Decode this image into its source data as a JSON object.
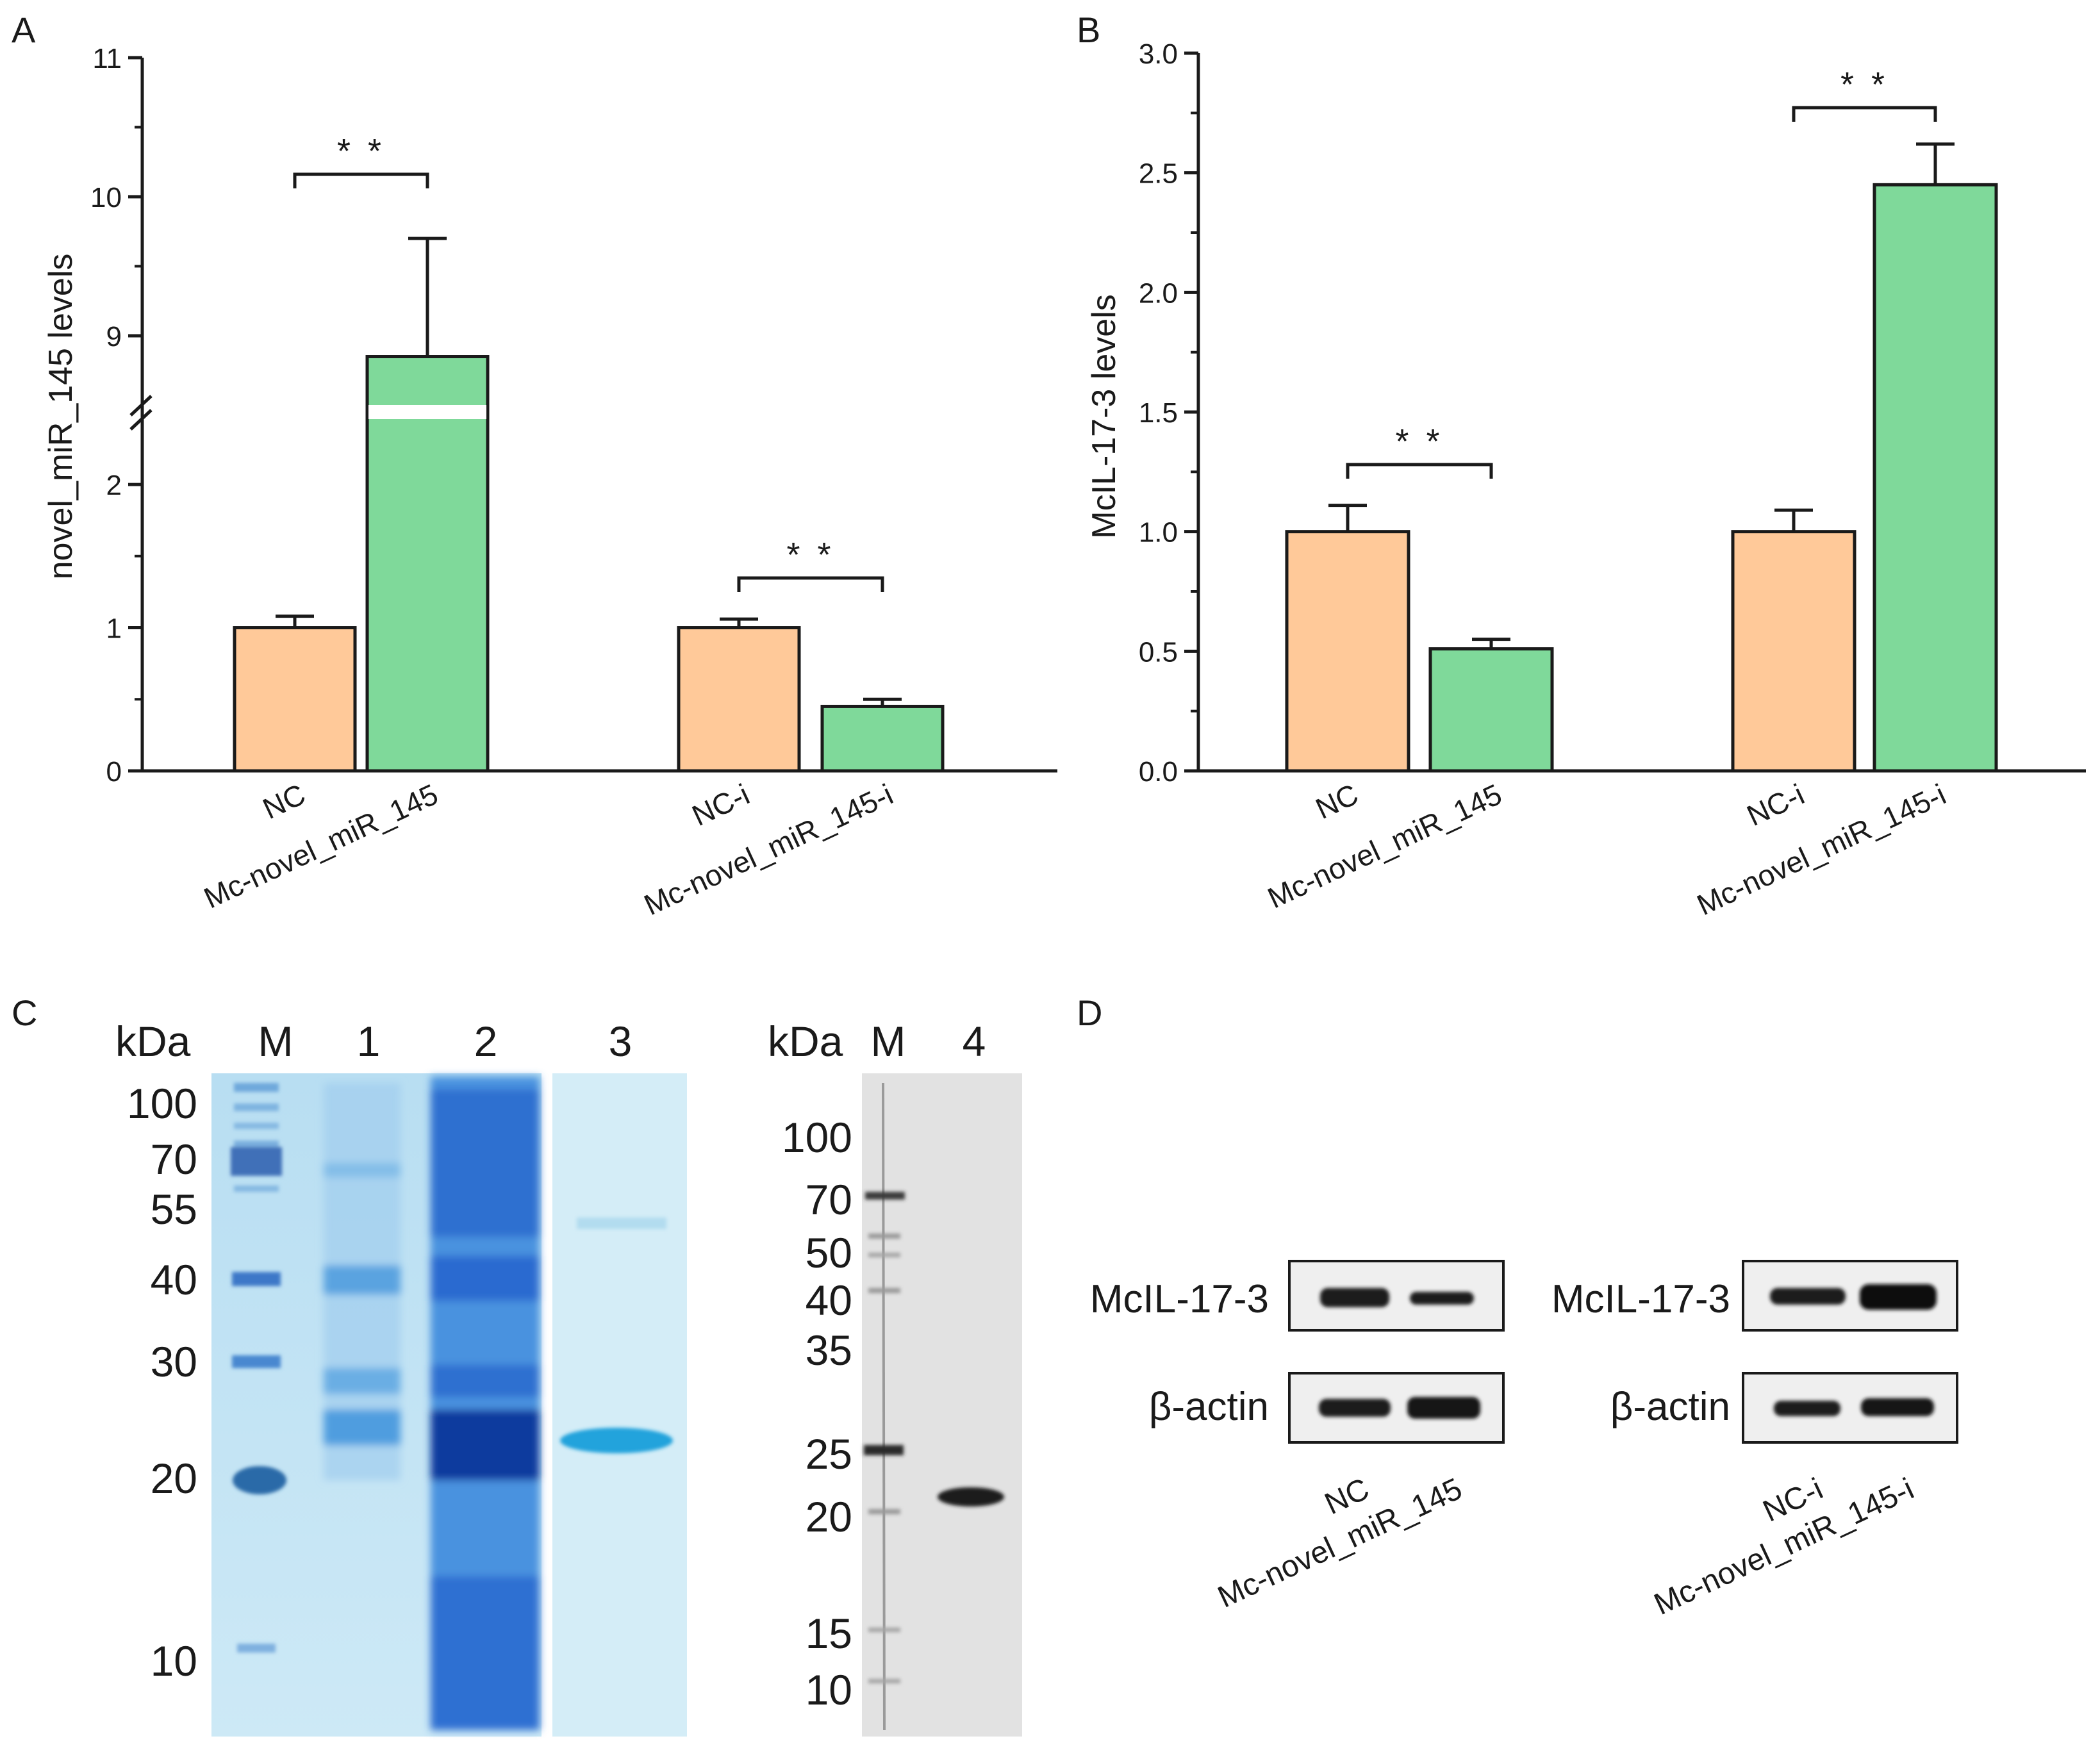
{
  "panel_labels": [
    "A",
    "B",
    "C",
    "D"
  ],
  "colors": {
    "orange": "#FFC999",
    "green": "#7FD99A",
    "axis": "#1a1a1a"
  },
  "chart_data": [
    {
      "panel": "A",
      "type": "bar",
      "ylabel": "novel_miR_145 levels",
      "broken_axis": true,
      "yticks_lower": [
        "0",
        "1",
        "2"
      ],
      "yticks_upper": [
        "9",
        "10",
        "11"
      ],
      "ylim_lower": [
        0,
        2.6
      ],
      "ylim_upper": [
        8.35,
        11
      ],
      "categories": [
        "NC",
        "Mc-novel_miR_145",
        "NC-i",
        "Mc-novel_miR_145-i"
      ],
      "values": [
        1.0,
        8.85,
        1.0,
        0.45
      ],
      "errors": [
        0.08,
        0.85,
        0.06,
        0.05
      ],
      "bar_colors": [
        "orange",
        "green",
        "orange",
        "green"
      ],
      "significance": [
        {
          "label": "* *",
          "pair": [
            0,
            1
          ]
        },
        {
          "label": "* *",
          "pair": [
            2,
            3
          ]
        }
      ]
    },
    {
      "panel": "B",
      "type": "bar",
      "ylabel": "McIL-17-3 levels",
      "yticks": [
        "0.0",
        "0.5",
        "1.0",
        "1.5",
        "2.0",
        "2.5",
        "3.0"
      ],
      "ylim": [
        0,
        3.0
      ],
      "categories": [
        "NC",
        "Mc-novel_miR_145",
        "NC-i",
        "Mc-novel_miR_145-i"
      ],
      "values": [
        1.0,
        0.51,
        1.0,
        2.45
      ],
      "errors": [
        0.11,
        0.04,
        0.09,
        0.17
      ],
      "bar_colors": [
        "orange",
        "green",
        "orange",
        "green"
      ],
      "significance": [
        {
          "label": "* *",
          "pair": [
            0,
            1
          ]
        },
        {
          "label": "* *",
          "pair": [
            2,
            3
          ]
        }
      ]
    }
  ],
  "panel_c": {
    "gel1": {
      "unit": "kDa",
      "lanes": [
        "M",
        "1",
        "2",
        "3"
      ],
      "markers": [
        "100",
        "70",
        "55",
        "40",
        "30",
        "20",
        "10"
      ]
    },
    "gel2": {
      "unit": "kDa",
      "lanes": [
        "M",
        "4"
      ],
      "markers": [
        "100",
        "70",
        "50",
        "40",
        "35",
        "25",
        "20",
        "15",
        "10"
      ]
    }
  },
  "panel_d": {
    "blots": [
      {
        "rows": [
          "McIL-17-3",
          "β-actin"
        ],
        "lanes": [
          "NC",
          "Mc-novel_miR_145"
        ]
      },
      {
        "rows": [
          "McIL-17-3",
          "β-actin"
        ],
        "lanes": [
          "NC-i",
          "Mc-novel_miR_145-i"
        ]
      }
    ]
  }
}
